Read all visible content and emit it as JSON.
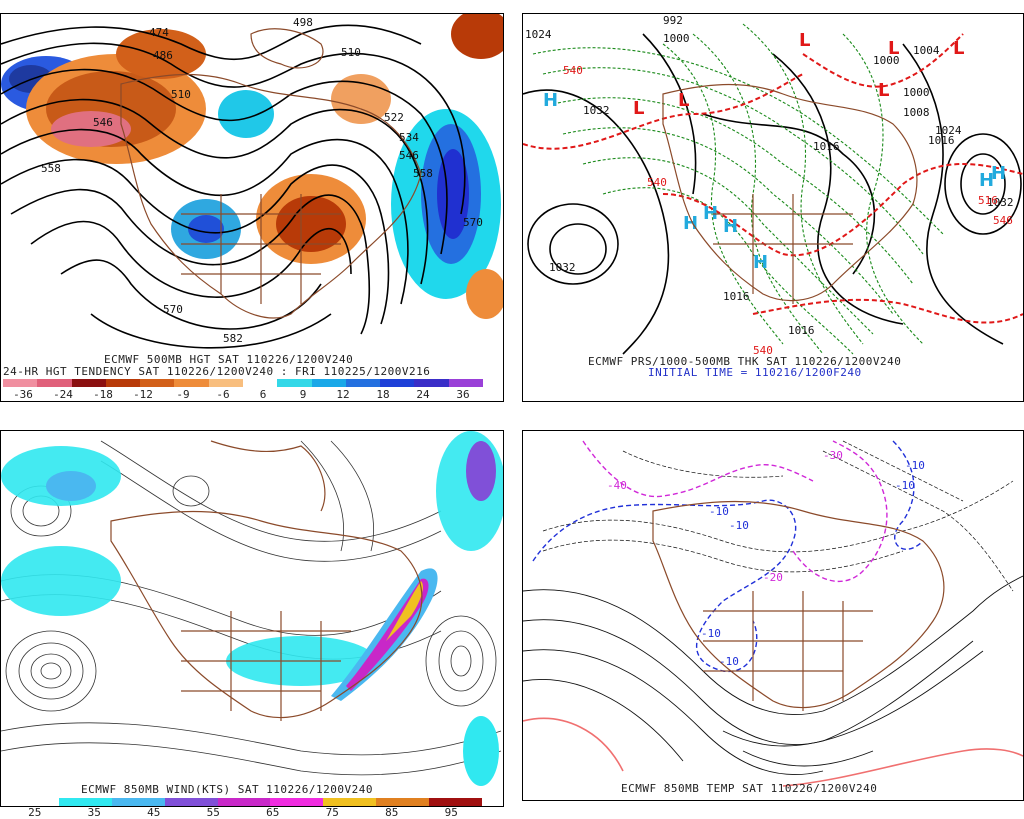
{
  "panels": [
    {
      "id": "p1",
      "caption1": "ECMWF 500MB HGT SAT 110226/1200V240",
      "caption2": "24-HR HGT TENDENCY SAT 110226/1200V240 : FRI 110225/1200V216",
      "contour_labels": [
        "474",
        "486",
        "498",
        "510",
        "510",
        "522",
        "534",
        "546",
        "558",
        "558",
        "570",
        "570",
        "582",
        "546"
      ],
      "colorbar": {
        "ticks": [
          "-36",
          "-24",
          "-18",
          "-12",
          "-9",
          "-6",
          "6",
          "9",
          "12",
          "18",
          "24",
          "36"
        ],
        "colors": [
          "#f08fa0",
          "#e0607a",
          "#8b1010",
          "#b83a08",
          "#d2601a",
          "#ee8c3a",
          "#f8be7e",
          "#ffffff",
          "#34d8e8",
          "#1aa8e8",
          "#2470e0",
          "#1e40d8",
          "#3a2ec8",
          "#9a40d8"
        ]
      }
    },
    {
      "id": "p2",
      "caption1": "ECMWF PRS/1000-500MB THK SAT 110226/1200V240",
      "caption2": "INITIAL TIME = 110216/1200F240",
      "contour_labels": [
        "992",
        "1000",
        "1000",
        "1000",
        "1004",
        "1008",
        "1016",
        "1016",
        "1024",
        "1024",
        "1032",
        "1032",
        "1032",
        "1016",
        "1016",
        "540",
        "540",
        "540",
        "516",
        "546"
      ],
      "high_markers": [
        "H",
        "H",
        "H",
        "H",
        "H",
        "H",
        "H"
      ],
      "low_markers": [
        "L",
        "L",
        "L",
        "L",
        "L",
        "L"
      ]
    },
    {
      "id": "p3",
      "caption1": "ECMWF 850MB WIND(KTS) SAT 110226/1200V240",
      "colorbar": {
        "ticks": [
          "25",
          "35",
          "45",
          "55",
          "65",
          "75",
          "85",
          "95"
        ],
        "colors": [
          "#ffffff",
          "#30e8f0",
          "#4ab8f0",
          "#8050d8",
          "#c828c8",
          "#f02ce0",
          "#f0c020",
          "#e08020",
          "#a01010"
        ]
      }
    },
    {
      "id": "p4",
      "caption1": "ECMWF 850MB TEMP SAT 110226/1200V240",
      "contour_labels": [
        "-40",
        "-30",
        "-20",
        "-10",
        "-10",
        "-10",
        "-10",
        "-10",
        "-10"
      ]
    }
  ]
}
